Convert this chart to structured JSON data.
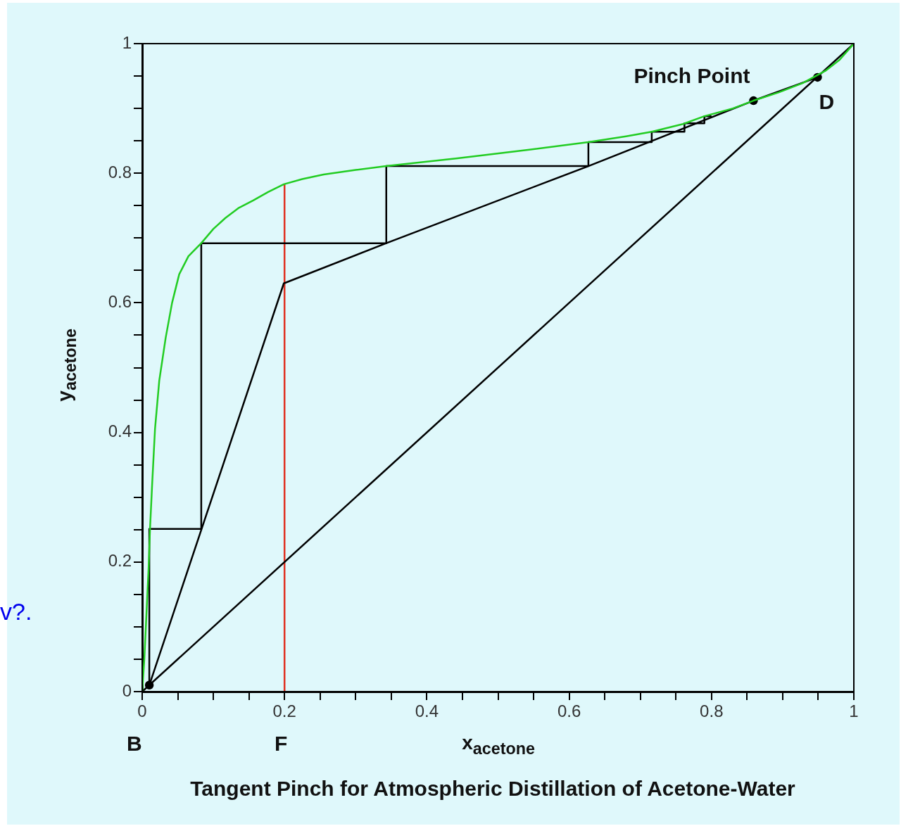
{
  "chart_data": {
    "type": "line",
    "title": "Tangent Pinch for Atmospheric Distillation of Acetone-Water",
    "xlabel": "x$_{acetone}$",
    "ylabel": "y$_{acetone}$",
    "xlim": [
      0,
      1
    ],
    "ylim": [
      0,
      1
    ],
    "xticks": [
      0,
      {
        "value": 0.05,
        "label": null
      },
      {
        "value": 0.1,
        "label": null
      },
      {
        "value": 0.15,
        "label": null
      },
      0.2,
      {
        "value": 0.25,
        "label": null
      },
      {
        "value": 0.3,
        "label": null
      },
      {
        "value": 0.35,
        "label": null
      },
      0.4,
      {
        "value": 0.45,
        "label": null
      },
      {
        "value": 0.5,
        "label": null
      },
      {
        "value": 0.55,
        "label": null
      },
      0.6,
      {
        "value": 0.65,
        "label": null
      },
      {
        "value": 0.7,
        "label": null
      },
      {
        "value": 0.75,
        "label": null
      },
      0.8,
      {
        "value": 0.85,
        "label": null
      },
      {
        "value": 0.9,
        "label": null
      },
      {
        "value": 0.95,
        "label": null
      },
      1
    ],
    "yticks": [
      0,
      {
        "value": 0.05,
        "label": null
      },
      {
        "value": 0.1,
        "label": null
      },
      {
        "value": 0.15,
        "label": null
      },
      0.2,
      {
        "value": 0.25,
        "label": null
      },
      {
        "value": 0.3,
        "label": null
      },
      {
        "value": 0.35,
        "label": null
      },
      0.4,
      {
        "value": 0.45,
        "label": null
      },
      {
        "value": 0.5,
        "label": null
      },
      {
        "value": 0.55,
        "label": null
      },
      0.6,
      {
        "value": 0.65,
        "label": null
      },
      {
        "value": 0.7,
        "label": null
      },
      {
        "value": 0.75,
        "label": null
      },
      0.8,
      {
        "value": 0.85,
        "label": null
      },
      {
        "value": 0.9,
        "label": null
      },
      {
        "value": 0.95,
        "label": null
      },
      1
    ],
    "grid": false,
    "legend": false,
    "series": [
      {
        "type": "line",
        "color": "#22cc22",
        "x": [
          0,
          0.003,
          0.006,
          0.009,
          0.011,
          0.014,
          0.018,
          0.024,
          0.033,
          0.042,
          0.052,
          0.065,
          0.083,
          0.1,
          0.117,
          0.135,
          0.156,
          0.177,
          0.199,
          0.225,
          0.255,
          0.3,
          0.343,
          0.443,
          0.542,
          0.627,
          0.68,
          0.716,
          0.76,
          0.79,
          0.83,
          0.859,
          0.895,
          0.928,
          0.96,
          0.98,
          1
        ],
        "values": [
          0,
          0.05,
          0.12,
          0.19,
          0.251,
          0.32,
          0.405,
          0.48,
          0.546,
          0.6,
          0.644,
          0.672,
          0.692,
          0.714,
          0.731,
          0.746,
          0.758,
          0.771,
          0.783,
          0.791,
          0.798,
          0.805,
          0.811,
          0.823,
          0.836,
          0.848,
          0.857,
          0.864,
          0.876,
          0.888,
          0.9,
          0.912,
          0.925,
          0.939,
          0.958,
          0.975,
          1
        ]
      },
      {
        "type": "line",
        "color": "#000000",
        "x": [
          0,
          1
        ],
        "values": [
          0,
          1
        ]
      },
      {
        "type": "line",
        "color": "#000000",
        "x": [
          0.01,
          0.199,
          0.343,
          0.627,
          0.859,
          0.949
        ],
        "values": [
          0.01,
          0.63,
          0.692,
          0.811,
          0.912,
          0.948
        ]
      },
      {
        "type": "line",
        "color": "#000000",
        "x": [
          0.01,
          0.01,
          0.083,
          0.083,
          0.343,
          0.343,
          0.627,
          0.627,
          0.716,
          0.716,
          0.762,
          0.762,
          0.79,
          0.79,
          0.8
        ],
        "values": [
          0.01,
          0.251,
          0.251,
          0.692,
          0.692,
          0.811,
          0.811,
          0.848,
          0.848,
          0.864,
          0.864,
          0.877,
          0.877,
          0.888,
          0.888
        ]
      },
      {
        "type": "line",
        "color": "#e03020",
        "x": [
          0.2,
          0.2
        ],
        "values": [
          0,
          0.783
        ]
      },
      {
        "type": "scatter",
        "color": "#000000",
        "marker": "circle",
        "x": [
          0.01,
          0.859,
          0.949
        ],
        "values": [
          0.01,
          0.912,
          0.948
        ]
      }
    ],
    "annotations": [
      {
        "text": "Pinch Point",
        "x": 0.859,
        "y": 0.912
      },
      {
        "text": "D",
        "x": 0.949,
        "y": 0.948
      },
      "B",
      "F",
      "v?."
    ]
  }
}
